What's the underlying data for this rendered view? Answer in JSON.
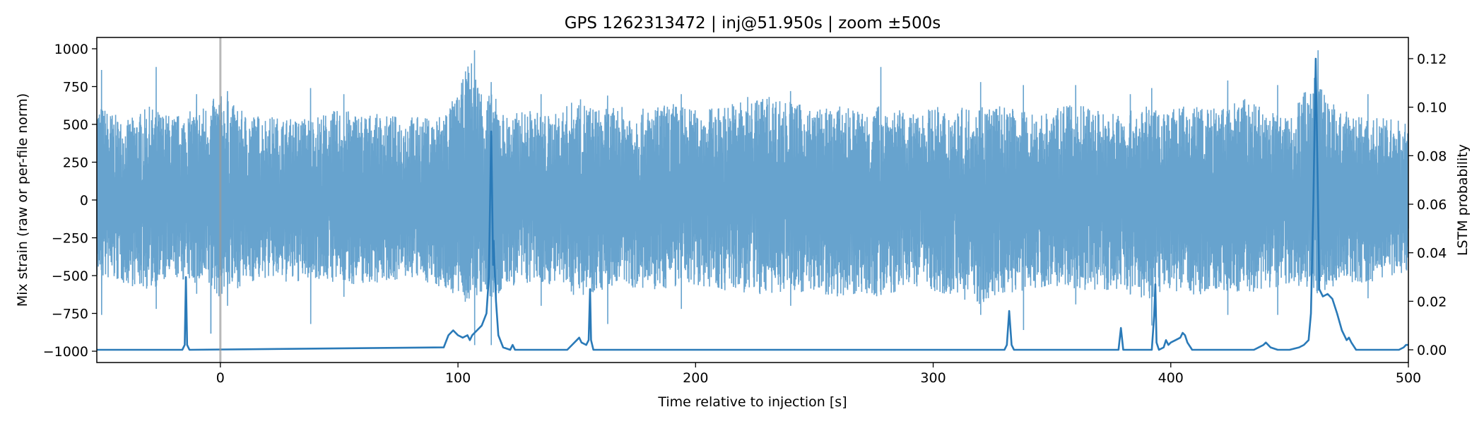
{
  "chart_data": {
    "type": "line",
    "title": "GPS 1262313472 | inj@51.950s | zoom ±500s",
    "xlabel": "Time relative to injection [s]",
    "ylabel_left": "Mix strain (raw or per-file norm)",
    "ylabel_right": "LSTM probability",
    "xlim": [
      -52,
      500
    ],
    "ylim_left": [
      -1000,
      1000
    ],
    "ylim_right": [
      0,
      0.12
    ],
    "xticks": [
      0,
      100,
      200,
      300,
      400,
      500
    ],
    "xtick_labels": [
      "0",
      "100",
      "200",
      "300",
      "400",
      "500"
    ],
    "yticks_left": [
      1000,
      750,
      500,
      250,
      0,
      -250,
      -500,
      -750,
      -1000
    ],
    "ytick_labels_left": [
      "1000",
      "750",
      "500",
      "250",
      "0",
      "−250",
      "−500",
      "−750",
      "−1000"
    ],
    "yticks_right": [
      0.12,
      0.1,
      0.08,
      0.06,
      0.04,
      0.02,
      0.0
    ],
    "ytick_labels_right": [
      "0.12",
      "0.10",
      "0.08",
      "0.06",
      "0.04",
      "0.02",
      "0.00"
    ],
    "injection_marker_x": 0,
    "grid": false,
    "series": [
      {
        "axis": "left",
        "color": "#5f9ecb",
        "envelope": [
          [
            -52,
            650,
            -520
          ],
          [
            -40,
            520,
            -560
          ],
          [
            -30,
            620,
            -600
          ],
          [
            -20,
            560,
            -520
          ],
          [
            -10,
            600,
            -560
          ],
          [
            0,
            700,
            -650
          ],
          [
            10,
            580,
            -560
          ],
          [
            20,
            560,
            -520
          ],
          [
            30,
            540,
            -560
          ],
          [
            40,
            560,
            -520
          ],
          [
            50,
            600,
            -560
          ],
          [
            60,
            580,
            -560
          ],
          [
            70,
            560,
            -540
          ],
          [
            80,
            560,
            -520
          ],
          [
            90,
            540,
            -560
          ],
          [
            100,
            700,
            -650
          ],
          [
            105,
            950,
            -700
          ],
          [
            110,
            750,
            -620
          ],
          [
            115,
            700,
            -700
          ],
          [
            120,
            560,
            -580
          ],
          [
            130,
            600,
            -560
          ],
          [
            140,
            560,
            -560
          ],
          [
            150,
            680,
            -640
          ],
          [
            160,
            600,
            -600
          ],
          [
            170,
            620,
            -560
          ],
          [
            180,
            600,
            -620
          ],
          [
            190,
            650,
            -580
          ],
          [
            200,
            600,
            -560
          ],
          [
            210,
            620,
            -600
          ],
          [
            220,
            680,
            -620
          ],
          [
            230,
            700,
            -640
          ],
          [
            240,
            660,
            -600
          ],
          [
            250,
            600,
            -620
          ],
          [
            260,
            620,
            -640
          ],
          [
            270,
            600,
            -620
          ],
          [
            280,
            640,
            -660
          ],
          [
            290,
            560,
            -560
          ],
          [
            300,
            620,
            -600
          ],
          [
            310,
            600,
            -640
          ],
          [
            320,
            650,
            -700
          ],
          [
            330,
            620,
            -620
          ],
          [
            340,
            580,
            -600
          ],
          [
            350,
            600,
            -560
          ],
          [
            360,
            640,
            -600
          ],
          [
            370,
            600,
            -600
          ],
          [
            380,
            580,
            -620
          ],
          [
            390,
            620,
            -660
          ],
          [
            400,
            600,
            -600
          ],
          [
            410,
            640,
            -640
          ],
          [
            420,
            600,
            -600
          ],
          [
            430,
            680,
            -620
          ],
          [
            440,
            600,
            -600
          ],
          [
            450,
            560,
            -560
          ],
          [
            460,
            850,
            -620
          ],
          [
            470,
            600,
            -600
          ],
          [
            480,
            560,
            -560
          ],
          [
            490,
            540,
            -520
          ],
          [
            500,
            520,
            -480
          ]
        ],
        "spikes": [
          [
            -50,
            860,
            -760
          ],
          [
            -27,
            880,
            -720
          ],
          [
            -10,
            700,
            -620
          ],
          [
            -4,
            -880,
            -880
          ],
          [
            3,
            720,
            -700
          ],
          [
            38,
            740,
            -820
          ],
          [
            52,
            700,
            -640
          ],
          [
            107,
            990,
            -960
          ],
          [
            114,
            780,
            -960
          ],
          [
            135,
            700,
            -700
          ],
          [
            163,
            690,
            -820
          ],
          [
            194,
            700,
            -720
          ],
          [
            240,
            720,
            -700
          ],
          [
            278,
            880,
            -600
          ],
          [
            320,
            780,
            -760
          ],
          [
            338,
            760,
            -860
          ],
          [
            360,
            760,
            -690
          ],
          [
            383,
            700,
            -620
          ],
          [
            392,
            740,
            -830
          ],
          [
            424,
            790,
            -760
          ],
          [
            445,
            760,
            -760
          ],
          [
            462,
            990,
            -600
          ],
          [
            483,
            700,
            -650
          ]
        ]
      },
      {
        "axis": "right",
        "color": "#2a7ab8",
        "points": [
          [
            -52,
            0.0
          ],
          [
            -16,
            0.0
          ],
          [
            -15,
            0.002
          ],
          [
            -14.5,
            0.03
          ],
          [
            -14,
            0.002
          ],
          [
            -13,
            0.0
          ],
          [
            94,
            0.001
          ],
          [
            96,
            0.006
          ],
          [
            98,
            0.008
          ],
          [
            100,
            0.006
          ],
          [
            102,
            0.005
          ],
          [
            104,
            0.006
          ],
          [
            105,
            0.004
          ],
          [
            106,
            0.006
          ],
          [
            108,
            0.008
          ],
          [
            110,
            0.01
          ],
          [
            112,
            0.015
          ],
          [
            113,
            0.03
          ],
          [
            114,
            0.09
          ],
          [
            114.8,
            0.035
          ],
          [
            115,
            0.045
          ],
          [
            115.6,
            0.03
          ],
          [
            116,
            0.02
          ],
          [
            117,
            0.006
          ],
          [
            119,
            0.001
          ],
          [
            122,
            0.0
          ],
          [
            123,
            0.002
          ],
          [
            124,
            0.0
          ],
          [
            146,
            0.0
          ],
          [
            148,
            0.002
          ],
          [
            150,
            0.004
          ],
          [
            151,
            0.005
          ],
          [
            152,
            0.003
          ],
          [
            154,
            0.002
          ],
          [
            155,
            0.004
          ],
          [
            155.6,
            0.025
          ],
          [
            156,
            0.004
          ],
          [
            157,
            0.0
          ],
          [
            330,
            0.0
          ],
          [
            331,
            0.002
          ],
          [
            332,
            0.016
          ],
          [
            333,
            0.002
          ],
          [
            334,
            0.0
          ],
          [
            378,
            0.0
          ],
          [
            379,
            0.009
          ],
          [
            380,
            0.0
          ],
          [
            392,
            0.0
          ],
          [
            393,
            0.014
          ],
          [
            393.5,
            0.027
          ],
          [
            394,
            0.003
          ],
          [
            395,
            0.0
          ],
          [
            397,
            0.001
          ],
          [
            398,
            0.004
          ],
          [
            399,
            0.002
          ],
          [
            400,
            0.003
          ],
          [
            402,
            0.004
          ],
          [
            404,
            0.005
          ],
          [
            405,
            0.007
          ],
          [
            406,
            0.006
          ],
          [
            407,
            0.003
          ],
          [
            409,
            0.0
          ],
          [
            420,
            0.0
          ],
          [
            435,
            0.0
          ],
          [
            437,
            0.001
          ],
          [
            439,
            0.002
          ],
          [
            440,
            0.003
          ],
          [
            442,
            0.001
          ],
          [
            445,
            0.0
          ],
          [
            450,
            0.0
          ],
          [
            454,
            0.001
          ],
          [
            456,
            0.002
          ],
          [
            458,
            0.004
          ],
          [
            459,
            0.015
          ],
          [
            460,
            0.06
          ],
          [
            461,
            0.12
          ],
          [
            461.8,
            0.07
          ],
          [
            462.5,
            0.025
          ],
          [
            464,
            0.022
          ],
          [
            466,
            0.023
          ],
          [
            468,
            0.021
          ],
          [
            470,
            0.015
          ],
          [
            472,
            0.008
          ],
          [
            474,
            0.004
          ],
          [
            475,
            0.005
          ],
          [
            476,
            0.003
          ],
          [
            478,
            0.0
          ],
          [
            496,
            0.0
          ],
          [
            498,
            0.001
          ],
          [
            499,
            0.002
          ],
          [
            500,
            0.002
          ]
        ]
      }
    ]
  }
}
